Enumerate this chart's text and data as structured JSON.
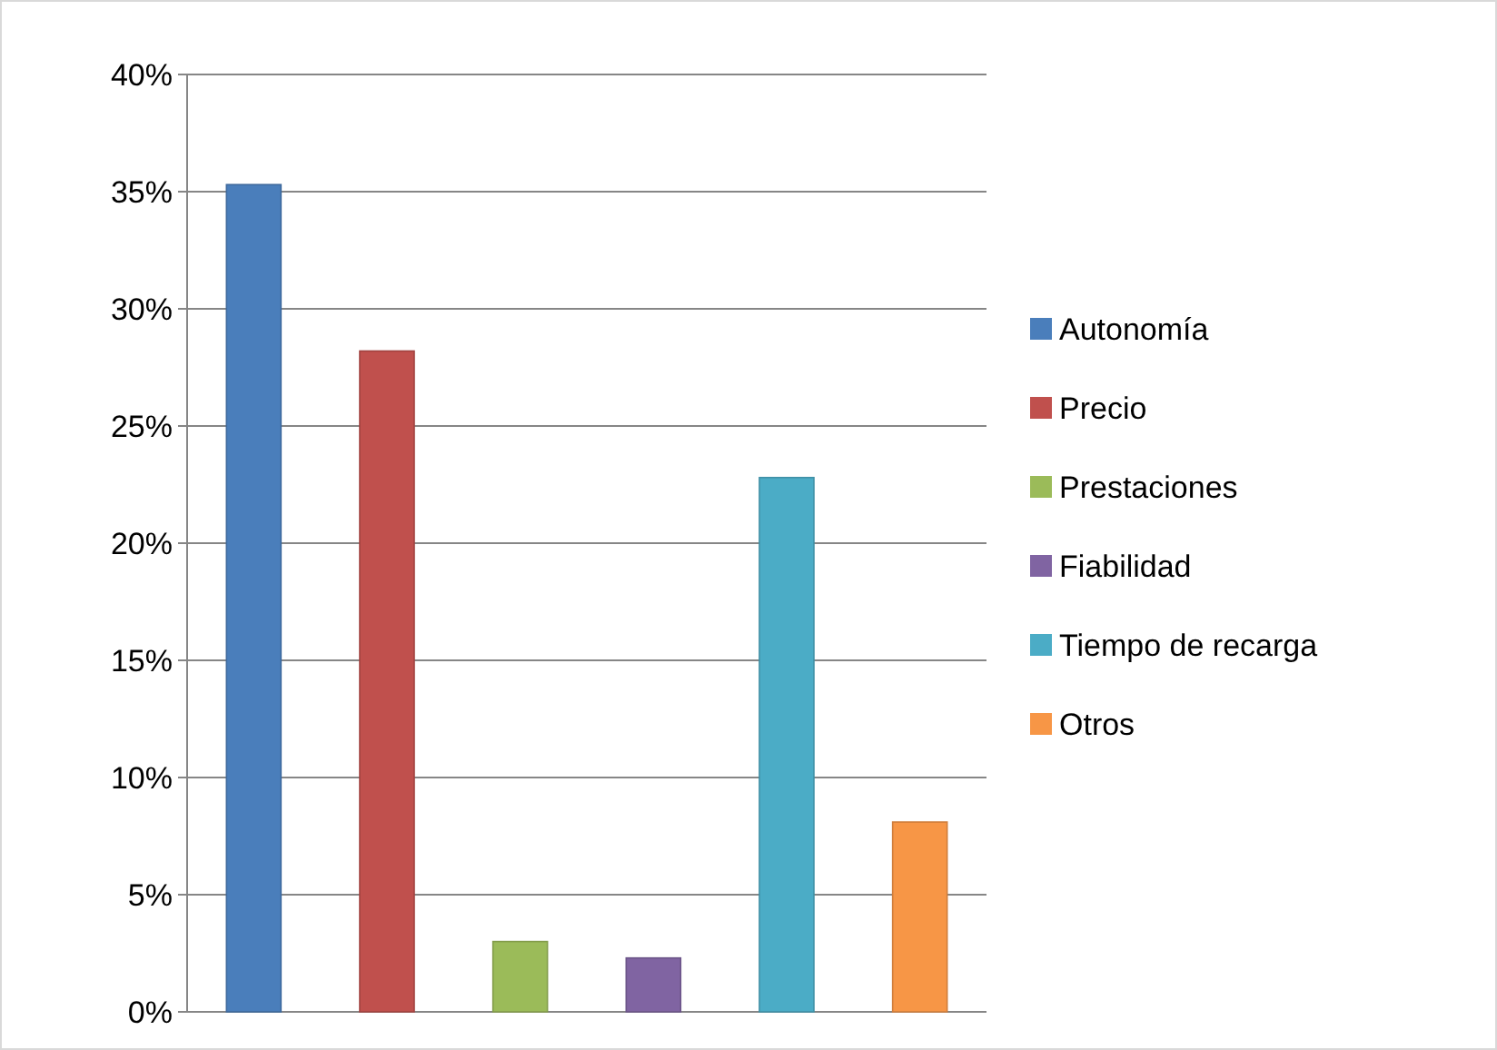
{
  "chart_data": {
    "type": "bar",
    "categories": [
      null
    ],
    "series": [
      {
        "name": "Autonomía",
        "color": "#4a7ebb",
        "values": [
          35.3
        ]
      },
      {
        "name": "Precio",
        "color": "#c0504d",
        "values": [
          28.2
        ]
      },
      {
        "name": "Prestaciones",
        "color": "#9bbb59",
        "values": [
          3.0
        ]
      },
      {
        "name": "Fiabilidad",
        "color": "#8064a2",
        "values": [
          2.3
        ]
      },
      {
        "name": "Tiempo de recarga",
        "color": "#4bacc6",
        "values": [
          22.8
        ]
      },
      {
        "name": "Otros",
        "color": "#f79646",
        "values": [
          8.1
        ]
      }
    ],
    "ylim": [
      0,
      40
    ],
    "yticks": [
      {
        "value": 0,
        "label": "0%"
      },
      {
        "value": 5,
        "label": "5%"
      },
      {
        "value": 10,
        "label": "10%"
      },
      {
        "value": 15,
        "label": "15%"
      },
      {
        "value": 20,
        "label": "20%"
      },
      {
        "value": 25,
        "label": "25%"
      },
      {
        "value": 30,
        "label": "30%"
      },
      {
        "value": 35,
        "label": "35%"
      },
      {
        "value": 40,
        "label": "40%"
      }
    ],
    "grid": "y",
    "legend": "right"
  }
}
